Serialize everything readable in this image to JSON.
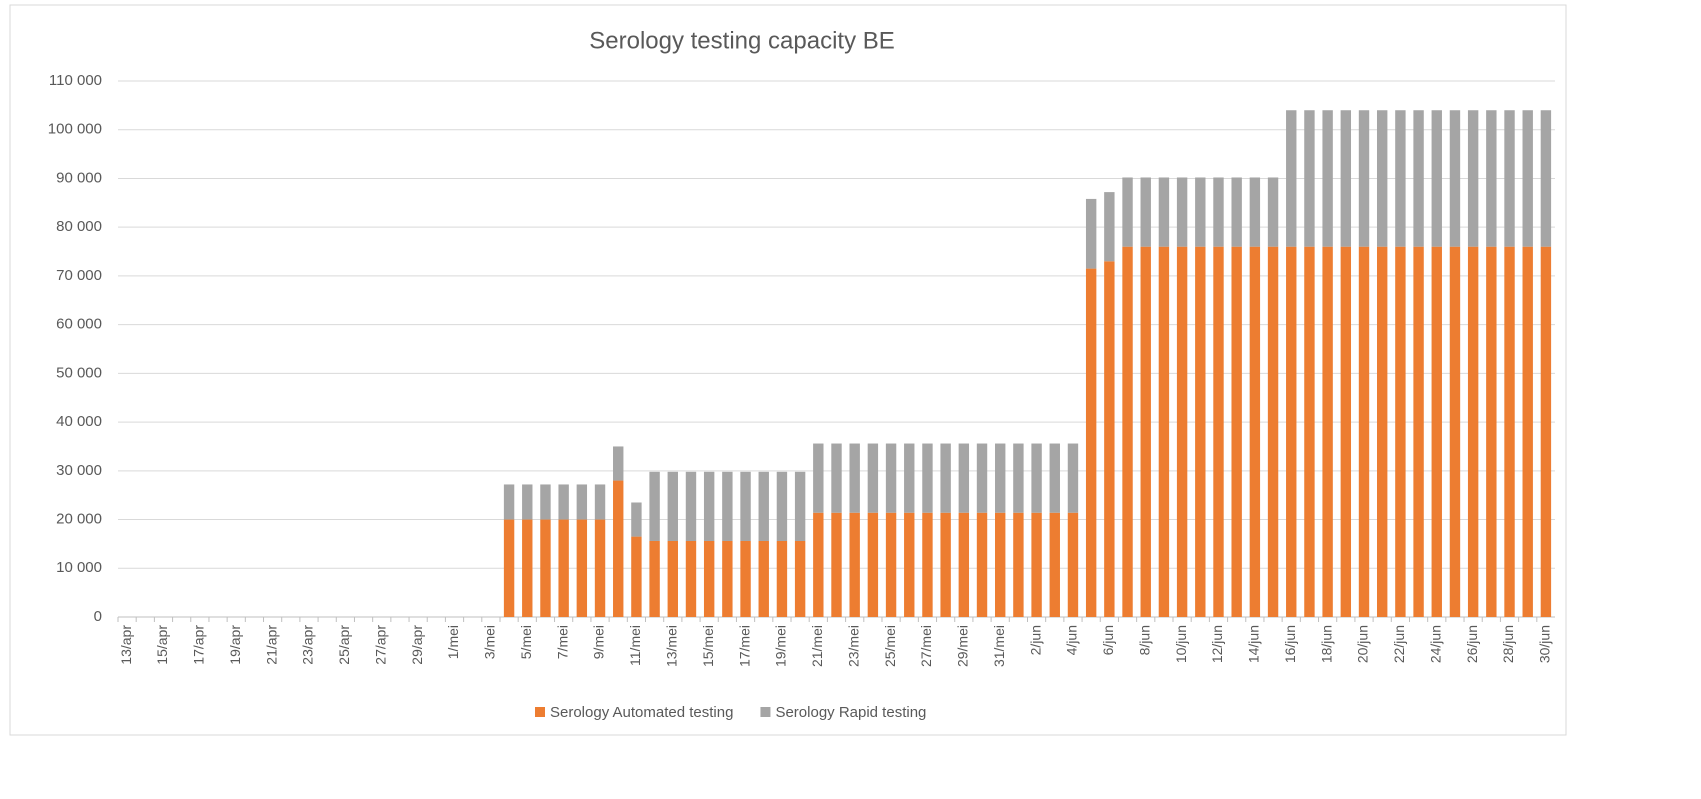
{
  "chart_data": {
    "type": "stacked-bar",
    "title": "Serology testing capacity BE",
    "categories": [
      "13/apr",
      null,
      "15/apr",
      null,
      "17/apr",
      null,
      "19/apr",
      null,
      "21/apr",
      null,
      "23/apr",
      null,
      "25/apr",
      null,
      "27/apr",
      null,
      "29/apr",
      null,
      "1/mei",
      null,
      "3/mei",
      null,
      "5/mei",
      null,
      "7/mei",
      null,
      "9/mei",
      null,
      "11/mei",
      null,
      "13/mei",
      null,
      "15/mei",
      null,
      "17/mei",
      null,
      "19/mei",
      null,
      "21/mei",
      null,
      "23/mei",
      null,
      "25/mei",
      null,
      "27/mei",
      null,
      "29/mei",
      null,
      "31/mei",
      null,
      "2/jun",
      null,
      "4/jun",
      null,
      "6/jun",
      null,
      "8/jun",
      null,
      "10/jun",
      null,
      "12/jun",
      null,
      "14/jun",
      null,
      "16/jun",
      null,
      "18/jun",
      null,
      "20/jun",
      null,
      "22/jun",
      null,
      "24/jun",
      null,
      "26/jun",
      null,
      "28/jun",
      null,
      "30/jun"
    ],
    "series": [
      {
        "name": "Serology Automated testing",
        "color": "#ed7d31",
        "values": [
          null,
          null,
          null,
          null,
          null,
          null,
          null,
          null,
          null,
          null,
          null,
          null,
          null,
          null,
          null,
          null,
          null,
          null,
          null,
          null,
          null,
          20000,
          20000,
          20000,
          20000,
          20000,
          20000,
          28000,
          16500,
          15600,
          15600,
          15600,
          15600,
          15600,
          15600,
          15600,
          15600,
          15600,
          21400,
          21400,
          21400,
          21400,
          21400,
          21400,
          21400,
          21400,
          21400,
          21400,
          21400,
          21400,
          21400,
          21400,
          21400,
          71500,
          73000,
          76000,
          76000,
          76000,
          76000,
          76000,
          76000,
          76000,
          76000,
          76000,
          76000,
          76000,
          76000,
          76000,
          76000,
          76000,
          76000,
          76000,
          76000,
          76000,
          76000,
          76000,
          76000,
          76000,
          76000
        ]
      },
      {
        "name": "Serology Rapid testing",
        "color": "#a5a5a5",
        "values": [
          null,
          null,
          null,
          null,
          null,
          null,
          null,
          null,
          null,
          null,
          null,
          null,
          null,
          null,
          null,
          null,
          null,
          null,
          null,
          null,
          null,
          7200,
          7200,
          7200,
          7200,
          7200,
          7200,
          7000,
          7000,
          14200,
          14200,
          14200,
          14200,
          14200,
          14200,
          14200,
          14200,
          14200,
          14200,
          14200,
          14200,
          14200,
          14200,
          14200,
          14200,
          14200,
          14200,
          14200,
          14200,
          14200,
          14200,
          14200,
          14200,
          14300,
          14200,
          14200,
          14200,
          14200,
          14200,
          14200,
          14200,
          14200,
          14200,
          14200,
          28000,
          28000,
          28000,
          28000,
          28000,
          28000,
          28000,
          28000,
          28000,
          28000,
          28000,
          28000,
          28000,
          28000,
          28000
        ]
      }
    ],
    "ylim": [
      0,
      110000
    ],
    "yticks": [
      0,
      {
        "value": 10000,
        "label": "10 000"
      },
      {
        "value": 20000,
        "label": "20 000"
      },
      {
        "value": 30000,
        "label": "30 000"
      },
      {
        "value": 40000,
        "label": "40 000"
      },
      {
        "value": 50000,
        "label": "50 000"
      },
      {
        "value": 60000,
        "label": "60 000"
      },
      {
        "value": 70000,
        "label": "70 000"
      },
      {
        "value": 80000,
        "label": "80 000"
      },
      {
        "value": 90000,
        "label": "90 000"
      },
      {
        "value": 100000,
        "label": "100 000"
      },
      {
        "value": 110000,
        "label": "110 000"
      }
    ],
    "grid": true,
    "legend": "bottom"
  }
}
